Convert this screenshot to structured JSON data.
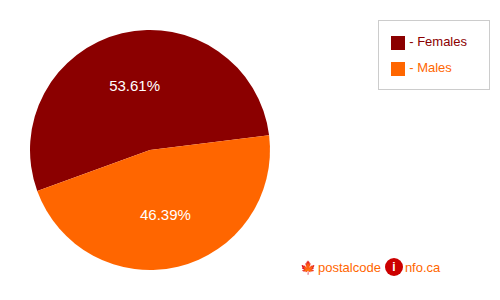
{
  "chart_data": {
    "type": "pie",
    "categories": [
      "- Females",
      "- Males"
    ],
    "values": [
      53.61,
      46.39
    ],
    "value_labels": [
      "53.61%",
      "46.39%"
    ],
    "colors": [
      "#8B0000",
      "#FF6600"
    ],
    "data_labels": true,
    "legend": "upper right",
    "annotations": [
      {
        "text": "🍁",
        "color": "#8B0000"
      },
      {
        "text": "postalcode",
        "color": "#FF6600"
      },
      {
        "text": "i",
        "color": "#ffffff",
        "background": "#CC0000"
      },
      {
        "text": "nfo.ca",
        "color": "#FF6600"
      }
    ]
  }
}
